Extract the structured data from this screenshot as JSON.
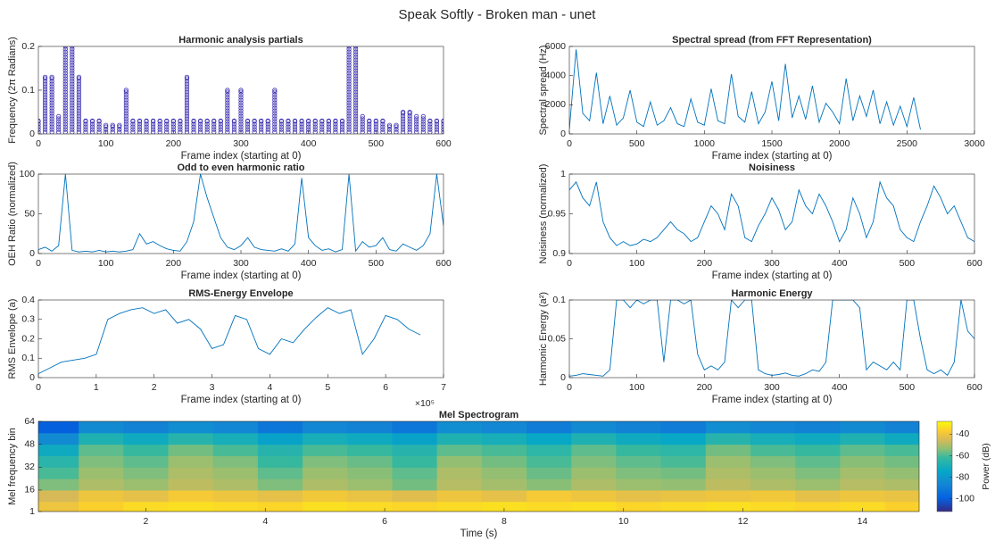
{
  "title": "Speak Softly - Broken man - unet",
  "chart_data": [
    {
      "type": "scatter",
      "title": "Harmonic analysis partials",
      "xlabel": "Frame index (starting at 0)",
      "ylabel": "Frequency (2π Radians)",
      "color": "#3b2fb0",
      "x": [
        0,
        10,
        20,
        30,
        40,
        50,
        60,
        70,
        80,
        90,
        100,
        110,
        120,
        130,
        140,
        150,
        160,
        170,
        180,
        190,
        200,
        210,
        220,
        230,
        240,
        250,
        260,
        270,
        280,
        290,
        300,
        310,
        320,
        330,
        340,
        350,
        360,
        370,
        380,
        390,
        400,
        410,
        420,
        430,
        440,
        450,
        460,
        470,
        480,
        490,
        500,
        510,
        520,
        530,
        540,
        550,
        560,
        570,
        580,
        590,
        600
      ],
      "values": [
        0.03,
        0.13,
        0.13,
        0.04,
        0.2,
        0.2,
        0.13,
        0.03,
        0.03,
        0.03,
        0.02,
        0.02,
        0.02,
        0.1,
        0.03,
        0.03,
        0.03,
        0.03,
        0.03,
        0.03,
        0.03,
        0.03,
        0.13,
        0.03,
        0.03,
        0.03,
        0.03,
        0.03,
        0.1,
        0.03,
        0.1,
        0.03,
        0.03,
        0.03,
        0.03,
        0.1,
        0.03,
        0.03,
        0.03,
        0.03,
        0.03,
        0.03,
        0.03,
        0.03,
        0.03,
        0.03,
        0.2,
        0.2,
        0.04,
        0.03,
        0.03,
        0.03,
        0.02,
        0.02,
        0.05,
        0.05,
        0.04,
        0.04,
        0.03,
        0.03,
        0.03
      ],
      "xlim": [
        0,
        600
      ],
      "xticks": [
        0,
        100,
        200,
        300,
        400,
        500,
        600
      ],
      "ylim": [
        0,
        0.2
      ],
      "yticks": [
        0,
        0.1,
        0.2
      ]
    },
    {
      "type": "line",
      "title": "Spectral spread (from FFT Representation)",
      "xlabel": "Frame index (starting at 0)",
      "ylabel": "Spectral spread (Hz)",
      "color": "#0072bd",
      "x": [
        0,
        50,
        100,
        150,
        200,
        250,
        300,
        350,
        400,
        450,
        500,
        550,
        600,
        650,
        700,
        750,
        800,
        850,
        900,
        950,
        1000,
        1050,
        1100,
        1150,
        1200,
        1250,
        1300,
        1350,
        1400,
        1450,
        1500,
        1550,
        1600,
        1650,
        1700,
        1750,
        1800,
        1850,
        1900,
        1950,
        2000,
        2050,
        2100,
        2150,
        2200,
        2250,
        2300,
        2350,
        2400,
        2450,
        2500,
        2550,
        2600
      ],
      "values": [
        300,
        5800,
        1400,
        900,
        4200,
        700,
        2600,
        600,
        1100,
        3000,
        800,
        500,
        2200,
        600,
        900,
        1800,
        700,
        500,
        2400,
        800,
        600,
        3100,
        900,
        700,
        4100,
        1200,
        800,
        2900,
        700,
        1500,
        3600,
        900,
        4800,
        1100,
        2600,
        1000,
        3300,
        800,
        2100,
        1500,
        700,
        3800,
        900,
        2600,
        1200,
        3000,
        700,
        2200,
        600,
        1900,
        500,
        2500,
        300
      ],
      "xlim": [
        0,
        3000
      ],
      "xticks": [
        0,
        500,
        1000,
        1500,
        2000,
        2500,
        3000
      ],
      "ylim": [
        0,
        6000
      ],
      "yticks": [
        0,
        2000,
        4000,
        6000
      ]
    },
    {
      "type": "line",
      "title": "Odd to even harmonic ratio",
      "xlabel": "Frame index (starting at 0)",
      "ylabel": "OEH Ratio (normalized)",
      "color": "#0072bd",
      "x": [
        0,
        10,
        20,
        30,
        40,
        50,
        60,
        70,
        80,
        90,
        100,
        110,
        120,
        130,
        140,
        150,
        160,
        170,
        180,
        190,
        200,
        210,
        220,
        230,
        240,
        250,
        260,
        270,
        280,
        290,
        300,
        310,
        320,
        330,
        340,
        350,
        360,
        370,
        380,
        390,
        400,
        410,
        420,
        430,
        440,
        450,
        460,
        470,
        480,
        490,
        500,
        510,
        520,
        530,
        540,
        550,
        560,
        570,
        580,
        590,
        600
      ],
      "values": [
        5,
        8,
        3,
        10,
        100,
        4,
        2,
        3,
        2,
        4,
        2,
        3,
        2,
        3,
        5,
        25,
        12,
        15,
        10,
        6,
        4,
        3,
        15,
        40,
        100,
        70,
        45,
        20,
        8,
        5,
        10,
        20,
        8,
        5,
        4,
        3,
        6,
        3,
        12,
        95,
        20,
        10,
        4,
        6,
        2,
        5,
        100,
        3,
        15,
        8,
        10,
        20,
        5,
        3,
        12,
        8,
        4,
        10,
        25,
        100,
        35
      ],
      "xlim": [
        0,
        600
      ],
      "xticks": [
        0,
        100,
        200,
        300,
        400,
        500,
        600
      ],
      "ylim": [
        0,
        100
      ],
      "yticks": [
        0,
        50,
        100
      ]
    },
    {
      "type": "line",
      "title": "Noisiness",
      "xlabel": "Frame index (starting at 0)",
      "ylabel": "Noisiness (normalized)",
      "color": "#0072bd",
      "x": [
        0,
        10,
        20,
        30,
        40,
        50,
        60,
        70,
        80,
        90,
        100,
        110,
        120,
        130,
        140,
        150,
        160,
        170,
        180,
        190,
        200,
        210,
        220,
        230,
        240,
        250,
        260,
        270,
        280,
        290,
        300,
        310,
        320,
        330,
        340,
        350,
        360,
        370,
        380,
        390,
        400,
        410,
        420,
        430,
        440,
        450,
        460,
        470,
        480,
        490,
        500,
        510,
        520,
        530,
        540,
        550,
        560,
        570,
        580,
        590,
        600
      ],
      "values": [
        0.98,
        0.99,
        0.97,
        0.96,
        0.99,
        0.94,
        0.92,
        0.91,
        0.915,
        0.91,
        0.912,
        0.918,
        0.915,
        0.92,
        0.93,
        0.94,
        0.93,
        0.925,
        0.915,
        0.92,
        0.94,
        0.96,
        0.95,
        0.93,
        0.975,
        0.96,
        0.92,
        0.915,
        0.935,
        0.95,
        0.97,
        0.955,
        0.93,
        0.94,
        0.98,
        0.96,
        0.95,
        0.975,
        0.96,
        0.94,
        0.915,
        0.93,
        0.97,
        0.95,
        0.92,
        0.94,
        0.99,
        0.97,
        0.96,
        0.93,
        0.92,
        0.915,
        0.94,
        0.96,
        0.985,
        0.97,
        0.95,
        0.96,
        0.94,
        0.92,
        0.915
      ],
      "xlim": [
        0,
        600
      ],
      "xticks": [
        0,
        100,
        200,
        300,
        400,
        500,
        600
      ],
      "ylim": [
        0.9,
        1
      ],
      "yticks": [
        0.9,
        0.95,
        1
      ]
    },
    {
      "type": "line",
      "title": "RMS-Energy Envelope",
      "xlabel": "Frame index (starting at 0)",
      "ylabel": "RMS Envelope (a)",
      "xexp": "×10⁵",
      "color": "#0072bd",
      "x": [
        0,
        20000,
        40000,
        60000,
        80000,
        100000,
        120000,
        140000,
        160000,
        180000,
        200000,
        220000,
        240000,
        260000,
        280000,
        300000,
        320000,
        340000,
        360000,
        380000,
        400000,
        420000,
        440000,
        460000,
        480000,
        500000,
        520000,
        540000,
        560000,
        580000,
        600000,
        620000,
        640000,
        660000
      ],
      "values": [
        0.02,
        0.05,
        0.08,
        0.09,
        0.1,
        0.12,
        0.3,
        0.33,
        0.35,
        0.36,
        0.33,
        0.35,
        0.28,
        0.3,
        0.25,
        0.15,
        0.17,
        0.32,
        0.3,
        0.15,
        0.12,
        0.2,
        0.18,
        0.25,
        0.31,
        0.36,
        0.33,
        0.35,
        0.12,
        0.2,
        0.32,
        0.3,
        0.25,
        0.22
      ],
      "xlim": [
        0,
        700000
      ],
      "xticks": [
        0,
        {
          "value": 100000,
          "label": "1"
        },
        {
          "value": 200000,
          "label": "2"
        },
        {
          "value": 300000,
          "label": "3"
        },
        {
          "value": 400000,
          "label": "4"
        },
        {
          "value": 500000,
          "label": "5"
        },
        {
          "value": 600000,
          "label": "6"
        },
        {
          "value": 700000,
          "label": "7"
        }
      ],
      "ylim": [
        0,
        0.4
      ],
      "yticks": [
        0,
        0.1,
        0.2,
        0.3,
        0.4
      ]
    },
    {
      "type": "line",
      "title": "Harmonic Energy",
      "xlabel": "Frame index (starting at 0)",
      "ylabel": "Harmonic Energy (a²)",
      "color": "#0072bd",
      "x": [
        0,
        10,
        20,
        30,
        40,
        50,
        60,
        70,
        80,
        90,
        100,
        110,
        120,
        130,
        140,
        150,
        160,
        170,
        180,
        190,
        200,
        210,
        220,
        230,
        240,
        250,
        260,
        270,
        280,
        290,
        300,
        310,
        320,
        330,
        340,
        350,
        360,
        370,
        380,
        390,
        400,
        410,
        420,
        430,
        440,
        450,
        460,
        470,
        480,
        490,
        500,
        510,
        520,
        530,
        540,
        550,
        560,
        570,
        580,
        590,
        600
      ],
      "values": [
        0.002,
        0.003,
        0.005,
        0.004,
        0.003,
        0.002,
        0.01,
        0.1,
        0.1,
        0.09,
        0.1,
        0.095,
        0.1,
        0.1,
        0.02,
        0.1,
        0.1,
        0.095,
        0.1,
        0.03,
        0.01,
        0.015,
        0.01,
        0.02,
        0.1,
        0.09,
        0.1,
        0.1,
        0.01,
        0.005,
        0.003,
        0.004,
        0.006,
        0.003,
        0.002,
        0.005,
        0.01,
        0.008,
        0.02,
        0.1,
        0.1,
        0.1,
        0.1,
        0.09,
        0.01,
        0.02,
        0.015,
        0.01,
        0.02,
        0.01,
        0.1,
        0.1,
        0.05,
        0.01,
        0.005,
        0.01,
        0.003,
        0.02,
        0.1,
        0.06,
        0.05
      ],
      "xlim": [
        0,
        600
      ],
      "xticks": [
        0,
        100,
        200,
        300,
        400,
        500,
        600
      ],
      "ylim": [
        0,
        0.1
      ],
      "yticks": [
        0,
        0.05,
        0.1
      ]
    },
    {
      "type": "heatmap",
      "title": "Mel Spectrogram",
      "xlabel": "Time (s)",
      "ylabel": "Mel frequency bin",
      "clabel": "Power (dB)",
      "x": [
        0.5,
        1.25,
        2,
        2.75,
        3.5,
        4.25,
        5,
        5.75,
        6.5,
        7.25,
        8,
        8.75,
        9.5,
        10.25,
        11,
        11.75,
        12.5,
        13.25,
        14,
        14.75
      ],
      "rows": [
        4,
        12,
        20,
        28,
        36,
        44,
        52,
        60
      ],
      "z": [
        [
          -40,
          -36,
          -34,
          -33,
          -34,
          -35,
          -33,
          -34,
          -35,
          -34,
          -33,
          -34,
          -33,
          -35,
          -34,
          -33,
          -34,
          -35,
          -34,
          -36
        ],
        [
          -45,
          -40,
          -42,
          -38,
          -40,
          -42,
          -39,
          -41,
          -43,
          -40,
          -42,
          -38,
          -40,
          -42,
          -41,
          -40,
          -39,
          -42,
          -40,
          -41
        ],
        [
          -55,
          -50,
          -52,
          -48,
          -50,
          -55,
          -50,
          -52,
          -56,
          -49,
          -51,
          -54,
          -50,
          -52,
          -53,
          -48,
          -50,
          -52,
          -49,
          -50
        ],
        [
          -60,
          -52,
          -55,
          -50,
          -52,
          -58,
          -52,
          -54,
          -58,
          -50,
          -53,
          -57,
          -52,
          -55,
          -56,
          -50,
          -52,
          -55,
          -51,
          -53
        ],
        [
          -65,
          -55,
          -58,
          -52,
          -55,
          -62,
          -55,
          -57,
          -62,
          -53,
          -56,
          -60,
          -55,
          -58,
          -60,
          -52,
          -55,
          -58,
          -54,
          -56
        ],
        [
          -72,
          -58,
          -62,
          -56,
          -60,
          -66,
          -60,
          -62,
          -66,
          -58,
          -60,
          -64,
          -58,
          -62,
          -64,
          -56,
          -60,
          -62,
          -58,
          -60
        ],
        [
          -85,
          -68,
          -72,
          -66,
          -70,
          -76,
          -70,
          -72,
          -76,
          -68,
          -70,
          -74,
          -68,
          -72,
          -74,
          -66,
          -70,
          -72,
          -68,
          -72
        ],
        [
          -100,
          -85,
          -88,
          -84,
          -86,
          -92,
          -86,
          -88,
          -92,
          -84,
          -86,
          -90,
          -85,
          -88,
          -90,
          -84,
          -86,
          -88,
          -85,
          -88
        ]
      ],
      "xlim": [
        0.2,
        14.95
      ],
      "xticks": [
        2,
        4,
        6,
        8,
        10,
        12,
        14
      ],
      "ylim": [
        1,
        64
      ],
      "yticks": [
        1,
        16,
        32,
        48,
        64
      ],
      "clim": [
        -112,
        -28
      ],
      "cticks": [
        -100,
        -80,
        -60,
        -40
      ]
    }
  ]
}
